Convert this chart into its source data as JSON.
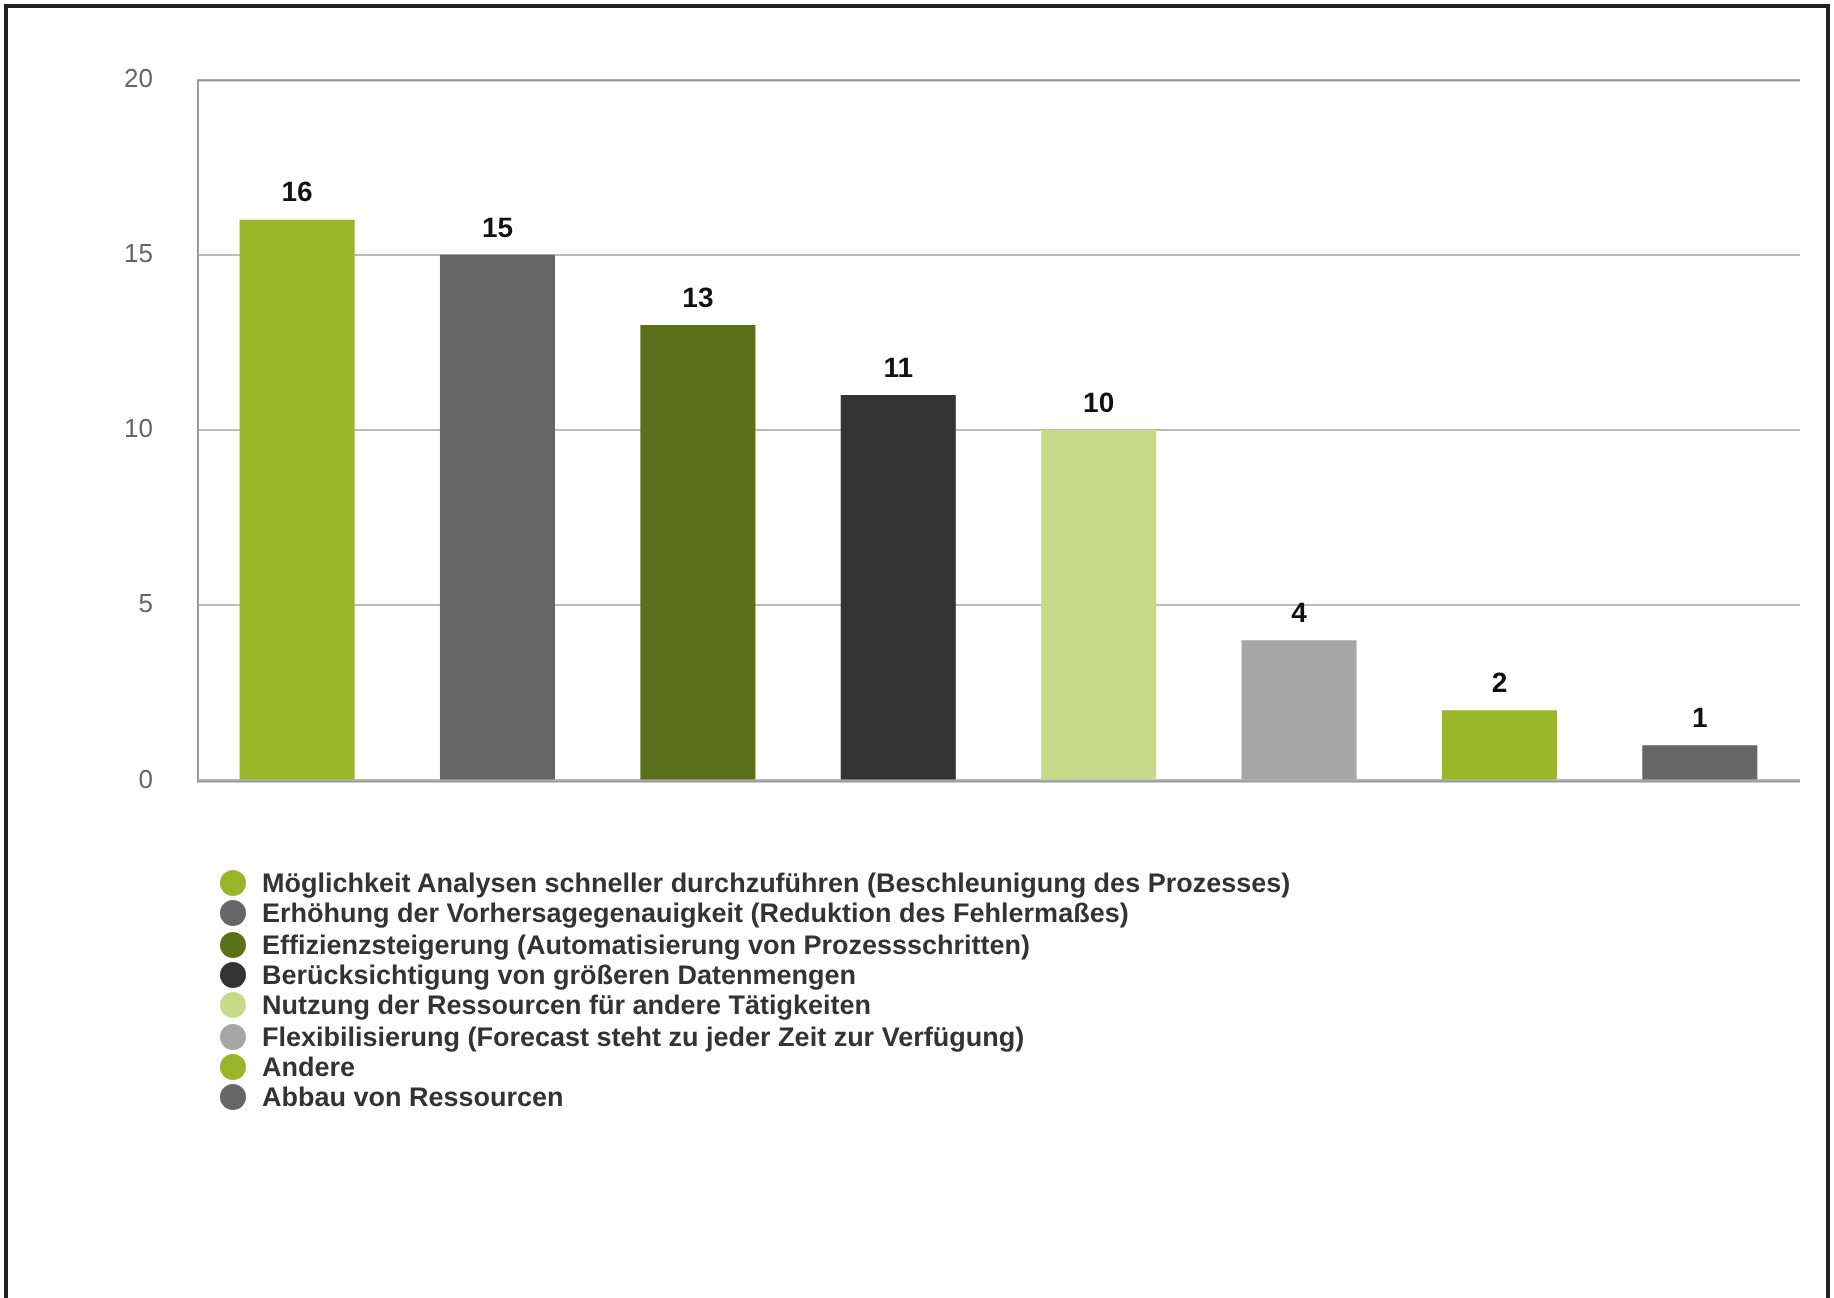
{
  "chart_data": {
    "type": "bar",
    "categories": [
      null,
      null,
      null,
      null,
      null,
      null,
      null,
      null
    ],
    "series": [
      {
        "name": "Möglichkeit Analysen schneller durchzuführen (Beschleunigung des Prozesses)",
        "color": "#9bb52b",
        "values": [
          16,
          null,
          null,
          null,
          null,
          null,
          null,
          null
        ]
      },
      {
        "name": "Erhöhung der Vorhersagegenauigkeit (Reduktion des Fehlermaßes)",
        "color": "#666666",
        "values": [
          null,
          15,
          null,
          null,
          null,
          null,
          null,
          null
        ]
      },
      {
        "name": "Effizienzsteigerung (Automatisierung von Prozessschritten)",
        "color": "#5c7019",
        "values": [
          null,
          null,
          13,
          null,
          null,
          null,
          null,
          null
        ]
      },
      {
        "name": "Berücksichtigung von größeren Datenmengen",
        "color": "#333333",
        "values": [
          null,
          null,
          null,
          11,
          null,
          null,
          null,
          null
        ]
      },
      {
        "name": "Nutzung der Ressourcen für andere Tätigkeiten",
        "color": "#c9d98a",
        "values": [
          null,
          null,
          null,
          null,
          10,
          null,
          null,
          null
        ]
      },
      {
        "name": "Flexibilisierung (Forecast steht zu jeder Zeit zur Verfügung)",
        "color": "#a6a6a6",
        "values": [
          null,
          null,
          null,
          null,
          null,
          4,
          null,
          null
        ]
      },
      {
        "name": "Andere",
        "color": "#9bb52b",
        "values": [
          null,
          null,
          null,
          null,
          null,
          null,
          2,
          null
        ]
      },
      {
        "name": "Abbau von Ressourcen",
        "color": "#666666",
        "values": [
          null,
          null,
          null,
          null,
          null,
          null,
          null,
          1
        ]
      }
    ],
    "ylim": [
      0,
      20
    ],
    "yticks": [
      0,
      5,
      10,
      15,
      20
    ],
    "grid": "y",
    "legend": "bottom",
    "data_labels": true
  }
}
